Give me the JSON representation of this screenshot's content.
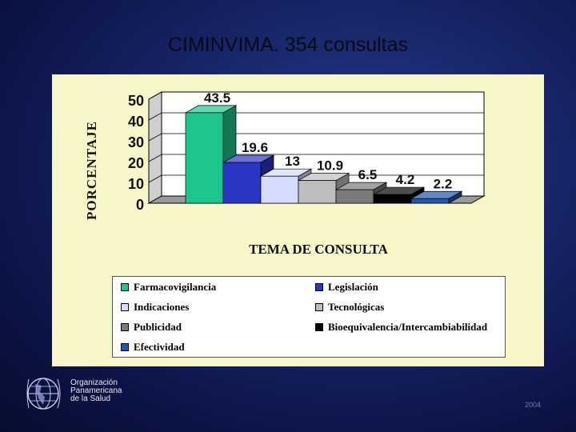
{
  "title": "CIMINVIMA. 354 consultas",
  "organization": [
    "Organización",
    "Panamericana",
    "de la Salud"
  ],
  "year": "2004",
  "chart_data": {
    "type": "bar",
    "title": "",
    "ylabel": "PORCENTAJE",
    "xlabel": "TEMA DE CONSULTA",
    "ylim": [
      0,
      50
    ],
    "yticks": [
      "50",
      "40",
      "30",
      "20",
      "10",
      "0"
    ],
    "grid": true,
    "legend_position": "bottom",
    "series": [
      {
        "name": "Farmacovigilancia",
        "value": 43.5,
        "label": "43.5",
        "color": "#1fc58f"
      },
      {
        "name": "Legislación",
        "value": 19.6,
        "label": "19.6",
        "color": "#2b35c4"
      },
      {
        "name": "Indicaciones",
        "value": 13,
        "label": "13",
        "color": "#d6dcff"
      },
      {
        "name": "Tecnológicas",
        "value": 10.9,
        "label": "10.9",
        "color": "#bdbdbd"
      },
      {
        "name": "Publicidad",
        "value": 6.5,
        "label": "6.5",
        "color": "#7a7a7a"
      },
      {
        "name": "Bioequivalencia/Intercambiabilidad",
        "value": 4.2,
        "label": "4.2",
        "color": "#000000"
      },
      {
        "name": "Efectividad",
        "value": 2.2,
        "label": "2.2",
        "color": "#1f57ad"
      }
    ]
  }
}
